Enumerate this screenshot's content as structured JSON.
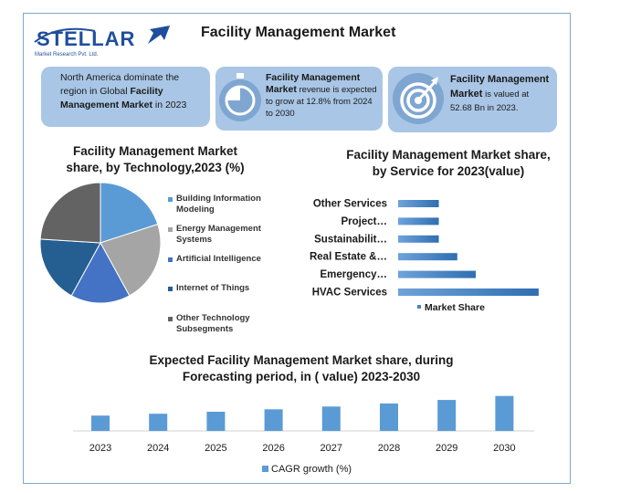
{
  "header": {
    "logo_text": "STELLAR",
    "logo_sub": "Market Research Pvt. Ltd.",
    "title": "Facility Management Market"
  },
  "cards": [
    {
      "pre": "North America dominate the region in Global ",
      "bold": "Facility Management Market",
      "post": " in 2023"
    },
    {
      "bold": "Facility Management Market",
      "post": " revenue is expected to grow at 12.8% from 2024 to 2030"
    },
    {
      "bold": "Facility Management Market",
      "post": " is valued at 52.68 Bn in 2023."
    }
  ],
  "icons": {
    "card2": "stopwatch-icon",
    "card3": "target-icon"
  },
  "chart_data": [
    {
      "type": "pie",
      "title": "Facility Management Market share, by Technology,2023 (%)",
      "categories": [
        "Building Information Modeling",
        "Energy Management Systems",
        "Artificial Intelligence",
        "Internet of Things",
        "Other Technology Subsegments"
      ],
      "values": [
        20,
        22,
        16,
        18,
        24
      ],
      "colors": [
        "#5b9bd5",
        "#a5a5a5",
        "#4472c4",
        "#255e91",
        "#636363"
      ],
      "legend": "right"
    },
    {
      "type": "bar",
      "orientation": "horizontal",
      "title": "Facility Management Market share, by Service for 2023(value)",
      "categories": [
        "HVAC Services",
        "Emergency…",
        "Real Estate &…",
        "Sustainabilit…",
        "Project…",
        "Other Services"
      ],
      "series": [
        {
          "name": "Market Share",
          "values": [
            38,
            21,
            16,
            11,
            11,
            11
          ]
        }
      ],
      "xlim": [
        0,
        40
      ],
      "color": "#4a84c4",
      "legend": "bottom"
    },
    {
      "type": "bar",
      "title": "Expected Facility Management Market share, during Forecasting period, in ( value) 2023-2030",
      "categories": [
        "2023",
        "2024",
        "2025",
        "2026",
        "2027",
        "2028",
        "2029",
        "2030"
      ],
      "series": [
        {
          "name": "CAGR growth (%)",
          "values": [
            10,
            11.2,
            12.5,
            14.1,
            15.9,
            17.9,
            20.2,
            22.8
          ]
        }
      ],
      "ylim": [
        0,
        25
      ],
      "color": "#5b9bd5",
      "legend": "bottom"
    }
  ]
}
